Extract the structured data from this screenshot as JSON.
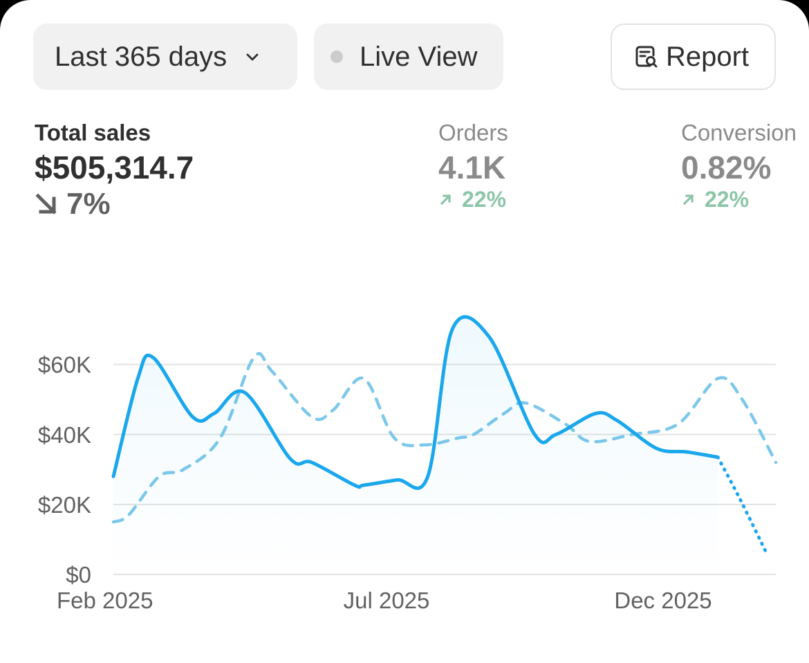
{
  "toolbar": {
    "date_range_label": "Last 365 days",
    "live_view_label": "Live View",
    "report_label": "Report"
  },
  "metrics": {
    "total_sales": {
      "label": "Total sales",
      "value": "$505,314.7",
      "change": "7%",
      "direction": "down"
    },
    "orders": {
      "label": "Orders",
      "value": "4.1K",
      "change": "22%",
      "direction": "up"
    },
    "conversion": {
      "label": "Conversion",
      "value": "0.82%",
      "change": "22%",
      "direction": "up"
    }
  },
  "colors": {
    "primary_series": "#1aa7ec",
    "comparison_series": "#7dc8ea",
    "gridline": "#e3e3e3",
    "positive": "#8cc5a8"
  },
  "icons": [
    "chevron-down-icon",
    "status-dot-icon",
    "report-search-icon",
    "arrow-down-right-icon",
    "arrow-up-right-icon"
  ],
  "chart_data": {
    "type": "line",
    "x_labels": [
      "Feb 2025",
      "Jul 2025",
      "Dec 2025"
    ],
    "y_ticks": [
      "$0",
      "$20K",
      "$40K",
      "$60K"
    ],
    "ylim": [
      0,
      72000
    ],
    "grid": true,
    "series": [
      {
        "style": "solid",
        "x_index": [
          0,
          0.8,
          1.3,
          2.6,
          3.3,
          4.3,
          5.8,
          6.5,
          7.9,
          8.2,
          9.3,
          10.3,
          11.1,
          12.3,
          13.8,
          14.5,
          15.8,
          16.5,
          17.8,
          18.8,
          19.8
        ],
        "values": [
          28000,
          56000,
          62000,
          45000,
          46000,
          52000,
          33000,
          32000,
          25500,
          25500,
          27000,
          28000,
          70000,
          68000,
          40000,
          40000,
          46000,
          44000,
          36000,
          35000,
          33500
        ]
      },
      {
        "style": "dotted",
        "x_index": [
          19.8,
          20.5,
          21.4
        ],
        "values": [
          33500,
          22000,
          6000
        ]
      },
      {
        "style": "dashed",
        "x_index": [
          0,
          0.5,
          1.5,
          2.3,
          3.5,
          4.6,
          5.2,
          6.5,
          7.2,
          8.2,
          9.2,
          10.2,
          11.3,
          11.8,
          12.8,
          13.5,
          14.8,
          15.6,
          17.0,
          18.5,
          19.8,
          20.6,
          21.7
        ],
        "values": [
          15000,
          17000,
          28000,
          30000,
          39000,
          62000,
          58000,
          45000,
          47000,
          56000,
          39000,
          37000,
          39000,
          40000,
          46000,
          49000,
          43000,
          38000,
          40000,
          43000,
          56000,
          50000,
          32000
        ]
      }
    ]
  }
}
